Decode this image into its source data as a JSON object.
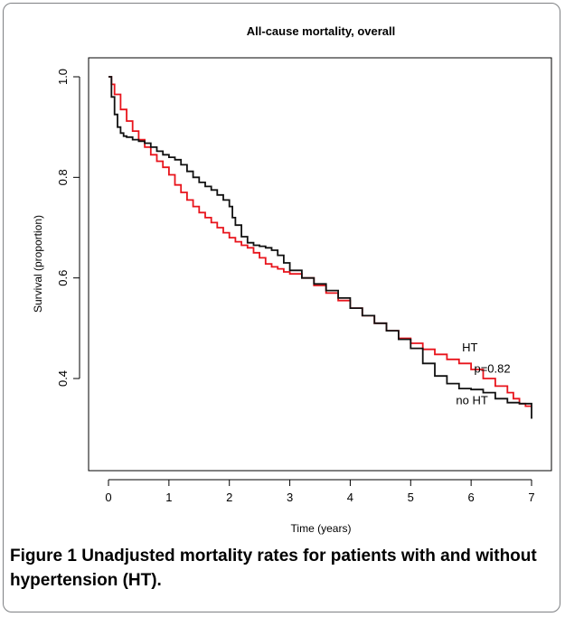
{
  "figure": {
    "label": "Figure 1",
    "caption": "Unadjusted mortality rates for patients with and without hypertension (HT)."
  },
  "chart_data": {
    "type": "line",
    "title": "All-cause mortality, overall",
    "xlabel": "Time (years)",
    "ylabel": "Survival (proportion)",
    "xlim": [
      0,
      7
    ],
    "ylim": [
      0.28,
      1.0
    ],
    "xticks": [
      "0",
      "1",
      "2",
      "3",
      "4",
      "5",
      "6",
      "7"
    ],
    "yticks": [
      "0.4",
      "0.6",
      "0.8",
      "1.0"
    ],
    "grid": false,
    "annotations": [
      {
        "text": "HT",
        "x": 5.85,
        "y": 0.454
      },
      {
        "text": "p=0.82",
        "x": 6.05,
        "y": 0.412
      },
      {
        "text": "no HT",
        "x": 5.75,
        "y": 0.349
      }
    ],
    "series": [
      {
        "name": "HT",
        "color": "#e8141c",
        "x": [
          0,
          0.05,
          0.1,
          0.2,
          0.3,
          0.4,
          0.5,
          0.6,
          0.7,
          0.8,
          0.9,
          1.0,
          1.1,
          1.2,
          1.3,
          1.4,
          1.5,
          1.6,
          1.7,
          1.8,
          1.9,
          2.0,
          2.1,
          2.2,
          2.3,
          2.4,
          2.5,
          2.6,
          2.7,
          2.8,
          2.9,
          3.0,
          3.2,
          3.4,
          3.6,
          3.8,
          4.0,
          4.2,
          4.4,
          4.6,
          4.8,
          5.0,
          5.2,
          5.4,
          5.6,
          5.8,
          6.0,
          6.2,
          6.4,
          6.6,
          6.7,
          6.8,
          6.9,
          7.0
        ],
        "y": [
          1.0,
          0.985,
          0.965,
          0.935,
          0.912,
          0.892,
          0.875,
          0.86,
          0.845,
          0.832,
          0.82,
          0.805,
          0.785,
          0.77,
          0.755,
          0.742,
          0.73,
          0.72,
          0.71,
          0.7,
          0.69,
          0.68,
          0.672,
          0.665,
          0.66,
          0.65,
          0.64,
          0.628,
          0.622,
          0.618,
          0.612,
          0.608,
          0.6,
          0.585,
          0.57,
          0.555,
          0.54,
          0.525,
          0.51,
          0.495,
          0.48,
          0.47,
          0.458,
          0.448,
          0.438,
          0.43,
          0.418,
          0.4,
          0.385,
          0.372,
          0.36,
          0.35,
          0.345,
          0.345
        ]
      },
      {
        "name": "no HT",
        "color": "#111111",
        "x": [
          0,
          0.05,
          0.1,
          0.15,
          0.2,
          0.25,
          0.3,
          0.4,
          0.5,
          0.6,
          0.7,
          0.8,
          0.9,
          1.0,
          1.1,
          1.2,
          1.3,
          1.4,
          1.5,
          1.6,
          1.7,
          1.8,
          1.9,
          2.0,
          2.05,
          2.1,
          2.2,
          2.3,
          2.4,
          2.5,
          2.6,
          2.7,
          2.8,
          2.9,
          3.0,
          3.2,
          3.4,
          3.6,
          3.8,
          4.0,
          4.2,
          4.4,
          4.6,
          4.8,
          5.0,
          5.2,
          5.4,
          5.6,
          5.8,
          6.0,
          6.2,
          6.4,
          6.6,
          6.8,
          7.0,
          7.0
        ],
        "y": [
          1.0,
          0.96,
          0.925,
          0.9,
          0.888,
          0.882,
          0.88,
          0.875,
          0.872,
          0.868,
          0.86,
          0.852,
          0.845,
          0.84,
          0.835,
          0.825,
          0.812,
          0.8,
          0.79,
          0.782,
          0.775,
          0.765,
          0.755,
          0.742,
          0.72,
          0.705,
          0.682,
          0.67,
          0.665,
          0.663,
          0.66,
          0.655,
          0.645,
          0.63,
          0.615,
          0.6,
          0.588,
          0.575,
          0.56,
          0.54,
          0.525,
          0.51,
          0.495,
          0.478,
          0.46,
          0.43,
          0.405,
          0.39,
          0.38,
          0.378,
          0.372,
          0.36,
          0.352,
          0.35,
          0.35,
          0.32
        ]
      }
    ]
  }
}
